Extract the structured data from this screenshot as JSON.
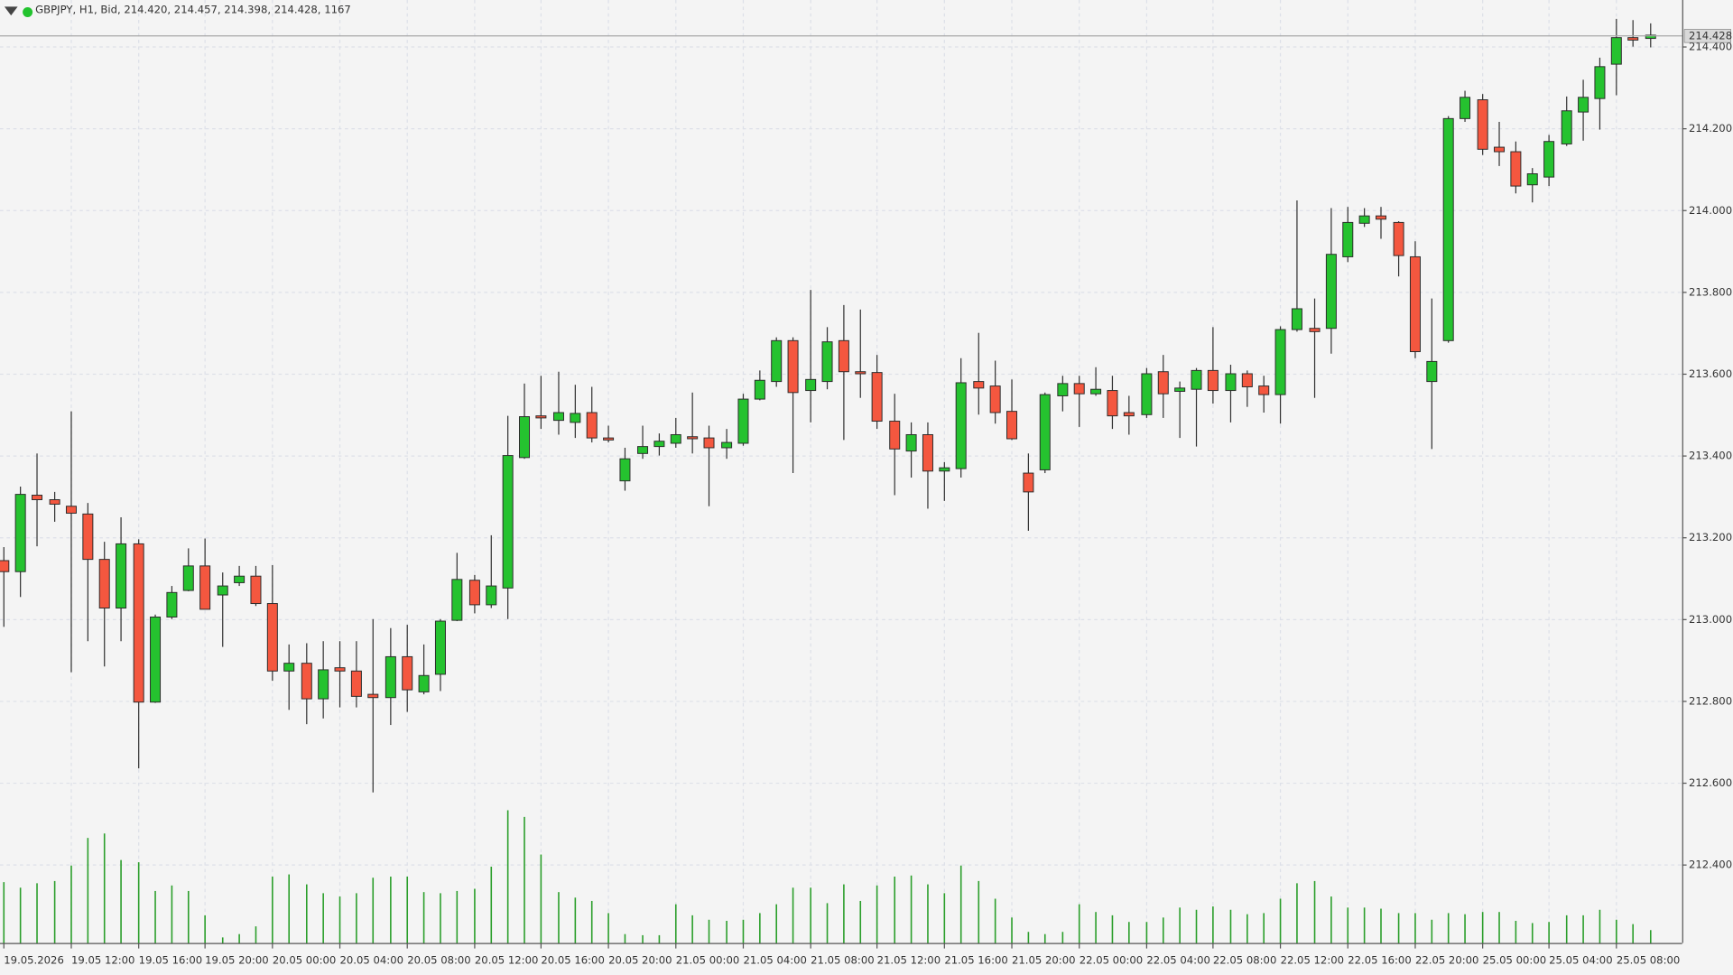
{
  "chart_data": {
    "type": "candlestick",
    "title": "GBPJPY, H1, Bid, 214.420, 214.457, 214.398, 214.428, 1167",
    "categories": [
      "19.05.2026",
      null,
      null,
      null,
      "19.05 12:00",
      null,
      null,
      null,
      "19.05 16:00",
      null,
      null,
      null,
      "19.05 20:00",
      null,
      null,
      null,
      "20.05 00:00",
      null,
      null,
      null,
      "20.05 04:00",
      null,
      null,
      null,
      "20.05 08:00",
      null,
      null,
      null,
      "20.05 12:00",
      null,
      null,
      null,
      "20.05 16:00",
      null,
      null,
      null,
      "20.05 20:00",
      null,
      null,
      null,
      "21.05 00:00",
      null,
      null,
      null,
      "21.05 04:00",
      null,
      null,
      null,
      "21.05 08:00",
      null,
      null,
      null,
      "21.05 12:00",
      null,
      null,
      null,
      "21.05 16:00",
      null,
      null,
      null,
      "21.05 20:00",
      null,
      null,
      null,
      "22.05 00:00",
      null,
      null,
      null,
      "22.05 04:00",
      null,
      null,
      null,
      "22.05 08:00",
      null,
      null,
      null,
      "22.05 12:00",
      null,
      null,
      null,
      "22.05 16:00",
      null,
      null,
      null,
      "22.05 20:00",
      null,
      null,
      null,
      "25.05 00:00",
      null,
      null,
      null,
      "25.05 04:00",
      null,
      null,
      null,
      "25.05 08:00",
      null,
      null
    ],
    "open": [
      213.143,
      213.116,
      213.303,
      213.292,
      213.276,
      213.257,
      213.146,
      213.027,
      213.184,
      212.797,
      213.005,
      213.07,
      213.13,
      213.059,
      213.089,
      213.105,
      213.038,
      212.873,
      212.892,
      212.805,
      212.881,
      212.873,
      212.816,
      212.808,
      212.908,
      212.822,
      212.865,
      212.997,
      213.095,
      213.035,
      213.076,
      213.395,
      213.497,
      213.486,
      213.481,
      213.505,
      213.443,
      213.338,
      213.405,
      213.422,
      213.43,
      213.446,
      213.443,
      213.419,
      213.43,
      213.538,
      213.581,
      213.681,
      213.559,
      213.581,
      213.681,
      213.605,
      213.603,
      213.484,
      213.411,
      213.451,
      213.362,
      213.368,
      213.581,
      213.57,
      213.508,
      213.357,
      213.365,
      213.546,
      213.576,
      213.551,
      213.559,
      213.505,
      213.5,
      213.605,
      213.557,
      213.562,
      213.608,
      213.559,
      213.6,
      213.57,
      213.549,
      213.708,
      213.711,
      213.711,
      213.886,
      213.968,
      213.986,
      213.97,
      213.886,
      213.581,
      213.681,
      214.224,
      214.27,
      214.154,
      214.143,
      214.062,
      214.081,
      214.162,
      214.24,
      214.273,
      214.357,
      214.422,
      214.42
    ],
    "high": [
      213.176,
      213.324,
      213.405,
      213.311,
      213.508,
      213.284,
      213.189,
      213.249,
      213.195,
      213.011,
      213.081,
      213.173,
      213.197,
      213.114,
      213.13,
      213.13,
      213.132,
      212.938,
      212.941,
      212.946,
      212.946,
      212.946,
      213.0,
      212.978,
      212.986,
      212.938,
      213.0,
      213.162,
      213.108,
      213.205,
      213.497,
      213.576,
      213.595,
      213.605,
      213.573,
      213.568,
      213.473,
      213.419,
      213.473,
      213.454,
      213.492,
      213.554,
      213.473,
      213.465,
      213.551,
      213.608,
      213.689,
      213.689,
      213.805,
      213.714,
      213.768,
      213.757,
      213.646,
      213.551,
      213.481,
      213.481,
      213.384,
      213.638,
      213.7,
      213.632,
      213.586,
      213.405,
      213.554,
      213.595,
      213.595,
      213.616,
      213.595,
      213.546,
      213.614,
      213.646,
      213.581,
      213.614,
      213.714,
      213.622,
      213.608,
      213.595,
      213.716,
      214.024,
      213.784,
      214.005,
      214.008,
      214.005,
      214.008,
      213.973,
      213.924,
      213.784,
      214.23,
      214.292,
      214.284,
      214.216,
      214.168,
      214.103,
      214.184,
      214.278,
      214.319,
      214.373,
      214.468,
      214.465,
      214.457
    ],
    "low": [
      212.981,
      213.054,
      213.178,
      213.238,
      212.87,
      212.946,
      212.884,
      212.946,
      212.635,
      212.795,
      213.0,
      213.068,
      213.024,
      212.932,
      213.081,
      213.032,
      212.849,
      212.778,
      212.743,
      212.757,
      212.784,
      212.784,
      212.576,
      212.741,
      212.773,
      212.816,
      212.824,
      212.995,
      213.014,
      213.027,
      213.0,
      213.392,
      213.465,
      213.451,
      213.443,
      213.432,
      213.432,
      213.314,
      213.392,
      213.4,
      213.419,
      213.405,
      213.276,
      213.392,
      213.424,
      213.535,
      213.568,
      213.357,
      213.481,
      213.562,
      213.438,
      213.541,
      213.465,
      213.303,
      213.346,
      213.27,
      213.289,
      213.346,
      213.5,
      213.478,
      213.438,
      213.216,
      213.357,
      213.508,
      213.47,
      213.546,
      213.465,
      213.451,
      213.492,
      213.492,
      213.443,
      213.422,
      213.527,
      213.481,
      213.519,
      213.505,
      213.478,
      213.703,
      213.541,
      213.649,
      213.873,
      213.959,
      213.93,
      213.838,
      213.638,
      213.416,
      213.676,
      214.216,
      214.135,
      214.108,
      214.041,
      214.019,
      214.059,
      214.157,
      214.17,
      214.197,
      214.281,
      214.4,
      214.398
    ],
    "close": [
      213.116,
      213.305,
      213.292,
      213.281,
      213.259,
      213.146,
      213.027,
      213.184,
      212.797,
      213.005,
      213.065,
      213.13,
      213.024,
      213.081,
      213.105,
      213.038,
      212.873,
      212.892,
      212.805,
      212.876,
      212.873,
      212.811,
      212.808,
      212.908,
      212.827,
      212.862,
      212.995,
      213.097,
      213.035,
      213.081,
      213.4,
      213.495,
      213.492,
      213.505,
      213.503,
      213.443,
      213.438,
      213.392,
      213.422,
      213.435,
      213.451,
      213.441,
      213.419,
      213.432,
      213.538,
      213.584,
      213.681,
      213.554,
      213.586,
      213.678,
      213.605,
      213.6,
      213.484,
      213.416,
      213.451,
      213.362,
      213.37,
      213.578,
      213.565,
      213.505,
      213.441,
      213.311,
      213.549,
      213.576,
      213.551,
      213.562,
      213.497,
      213.497,
      213.6,
      213.551,
      213.565,
      213.608,
      213.559,
      213.6,
      213.568,
      213.549,
      213.708,
      213.759,
      213.703,
      213.892,
      213.97,
      213.986,
      213.978,
      213.889,
      213.654,
      213.63,
      214.224,
      214.276,
      214.149,
      214.143,
      214.059,
      214.089,
      214.168,
      214.243,
      214.276,
      214.351,
      214.422,
      214.416,
      214.428
    ],
    "volume": [
      5500,
      5000,
      5400,
      5600,
      7000,
      9500,
      9900,
      7500,
      7300,
      4700,
      5200,
      4700,
      2500,
      500,
      800,
      1500,
      6000,
      6200,
      5300,
      4500,
      4200,
      4500,
      5900,
      6000,
      6000,
      4600,
      4500,
      4700,
      4900,
      6900,
      12000,
      11400,
      8000,
      4600,
      4100,
      3800,
      2700,
      800,
      700,
      700,
      3500,
      2500,
      2100,
      2000,
      2100,
      2700,
      3500,
      5000,
      5000,
      3600,
      5300,
      3800,
      5200,
      6000,
      6100,
      5300,
      4500,
      7000,
      5600,
      4000,
      2300,
      1000,
      800,
      1000,
      3500,
      2800,
      2500,
      1900,
      1900,
      2300,
      3200,
      3000,
      3300,
      3000,
      2600,
      2700,
      4000,
      5400,
      5600,
      4200,
      3200,
      3200,
      3100,
      2700,
      2700,
      2100,
      2700,
      2600,
      2800,
      2800,
      2000,
      1800,
      1900,
      2500,
      2500,
      3000,
      2100,
      1700,
      1167
    ],
    "ylim": [
      212.208,
      214.514
    ],
    "yticks": [
      {
        "value": 212.4,
        "label": "212.400"
      },
      {
        "value": 212.6,
        "label": "212.600"
      },
      {
        "value": 212.8,
        "label": "212.800"
      },
      {
        "value": 213.0,
        "label": "213.000"
      },
      {
        "value": 213.2,
        "label": "213.200"
      },
      {
        "value": 213.4,
        "label": "213.400"
      },
      {
        "value": 213.6,
        "label": "213.600"
      },
      {
        "value": 213.8,
        "label": "213.800"
      },
      {
        "value": 214.0,
        "label": "214.000"
      },
      {
        "value": 214.2,
        "label": "214.200"
      },
      {
        "value": 214.4,
        "label": "214.400"
      }
    ],
    "current_price": 214.428,
    "grid": true,
    "up_color": "#25c22f",
    "down_color": "#f4573f",
    "volume_color": "#2a9e2a"
  }
}
